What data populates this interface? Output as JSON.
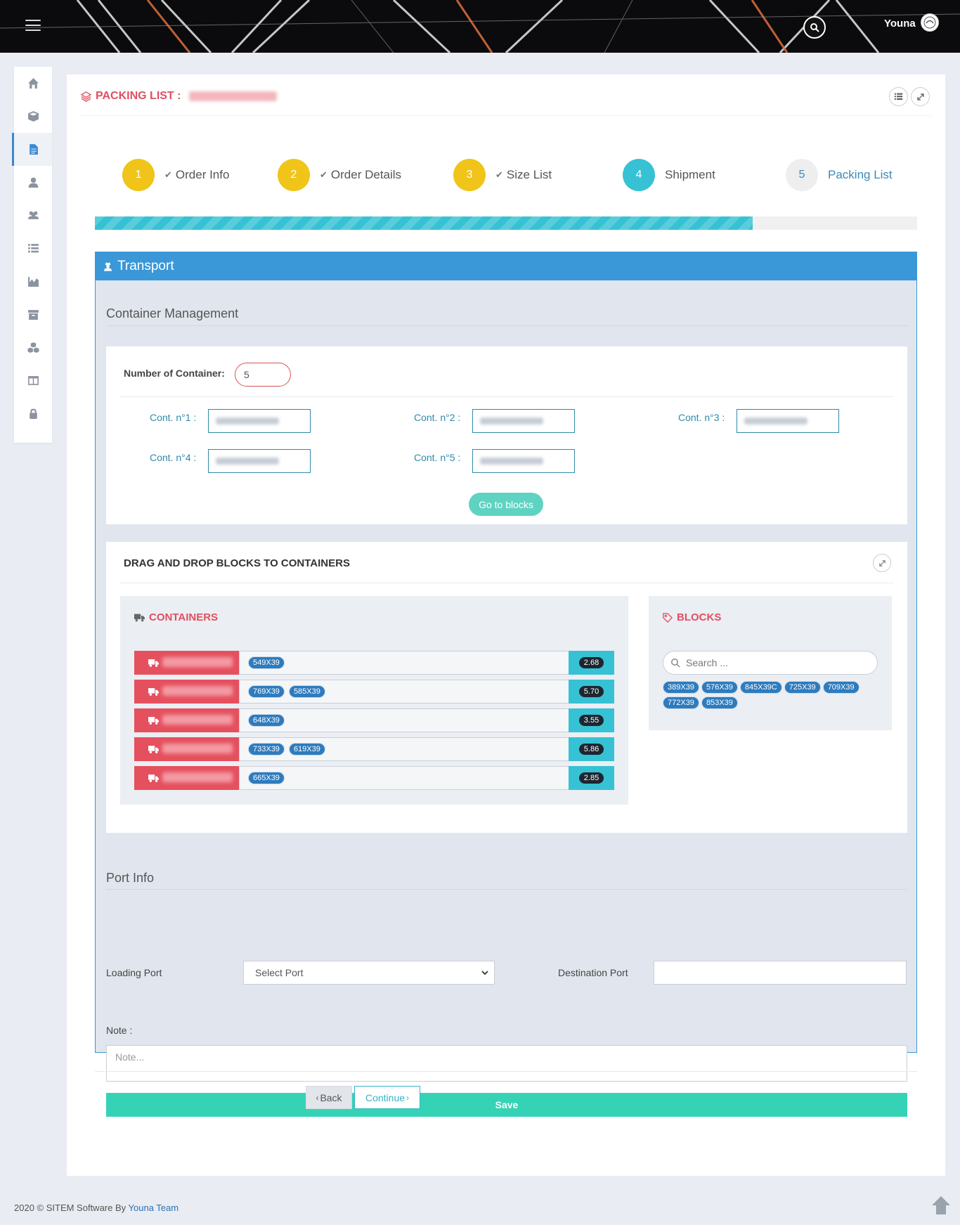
{
  "header": {
    "username": "Youna"
  },
  "sidebar": {
    "items": [
      {
        "icon": "home-icon",
        "active": false
      },
      {
        "icon": "cube-icon",
        "active": false
      },
      {
        "icon": "document-icon",
        "active": true
      },
      {
        "icon": "user-icon",
        "active": false
      },
      {
        "icon": "users-icon",
        "active": false
      },
      {
        "icon": "list-icon",
        "active": false
      },
      {
        "icon": "chart-icon",
        "active": false
      },
      {
        "icon": "archive-icon",
        "active": false
      },
      {
        "icon": "cubes-icon",
        "active": false
      },
      {
        "icon": "columns-icon",
        "active": false
      },
      {
        "icon": "lock-icon",
        "active": false
      }
    ]
  },
  "page": {
    "title": "PACKING LIST :"
  },
  "wizard": {
    "steps": [
      {
        "num": "1",
        "label": "Order Info",
        "done": true,
        "color": "#f0c419"
      },
      {
        "num": "2",
        "label": "Order Details",
        "done": true,
        "color": "#f0c419"
      },
      {
        "num": "3",
        "label": "Size List",
        "done": true,
        "color": "#f0c419"
      },
      {
        "num": "4",
        "label": "Shipment",
        "done": false,
        "color": "#36c2d4"
      },
      {
        "num": "5",
        "label": "Packing List",
        "done": false,
        "color": "#eeeeee"
      }
    ],
    "progress": 0.8
  },
  "transport": {
    "title": "Transport",
    "container_mgmt": {
      "title": "Container Management",
      "noc_label": "Number of Container:",
      "noc_value": "5",
      "labels": [
        "Cont. n°1 :",
        "Cont. n°2 :",
        "Cont. n°3 :",
        "Cont. n°4 :",
        "Cont. n°5 :"
      ],
      "goto_label": "Go to blocks"
    },
    "dnd": {
      "title": "DRAG AND DROP BLOCKS TO CONTAINERS",
      "containers_title": "CONTAINERS",
      "blocks_title": "BLOCKS",
      "search_placeholder": "Search ...",
      "rows": [
        {
          "tags": [
            "549X39"
          ],
          "value": "2.68"
        },
        {
          "tags": [
            "769X39",
            "585X39"
          ],
          "value": "5.70"
        },
        {
          "tags": [
            "648X39"
          ],
          "value": "3.55"
        },
        {
          "tags": [
            "733X39",
            "619X39"
          ],
          "value": "5.86"
        },
        {
          "tags": [
            "665X39"
          ],
          "value": "2.85"
        }
      ],
      "blocks": [
        "389X39",
        "576X39",
        "845X39C",
        "725X39",
        "709X39",
        "772X39",
        "853X39"
      ]
    },
    "port": {
      "title": "Port Info",
      "loading_label": "Loading Port",
      "loading_value": "Select Port",
      "destination_label": "Destination Port",
      "note_label": "Note :",
      "note_placeholder": "Note...",
      "save_label": "Save"
    }
  },
  "nav": {
    "back": "Back",
    "continue": "Continue"
  },
  "footer": {
    "text": "2020 © SITEM Software By ",
    "team": "Youna Team"
  },
  "colors": {
    "accent": "#3a98d8",
    "danger": "#e5505e",
    "teal": "#36c2d4",
    "save": "#35d3b6",
    "step_done": "#f0c419"
  }
}
